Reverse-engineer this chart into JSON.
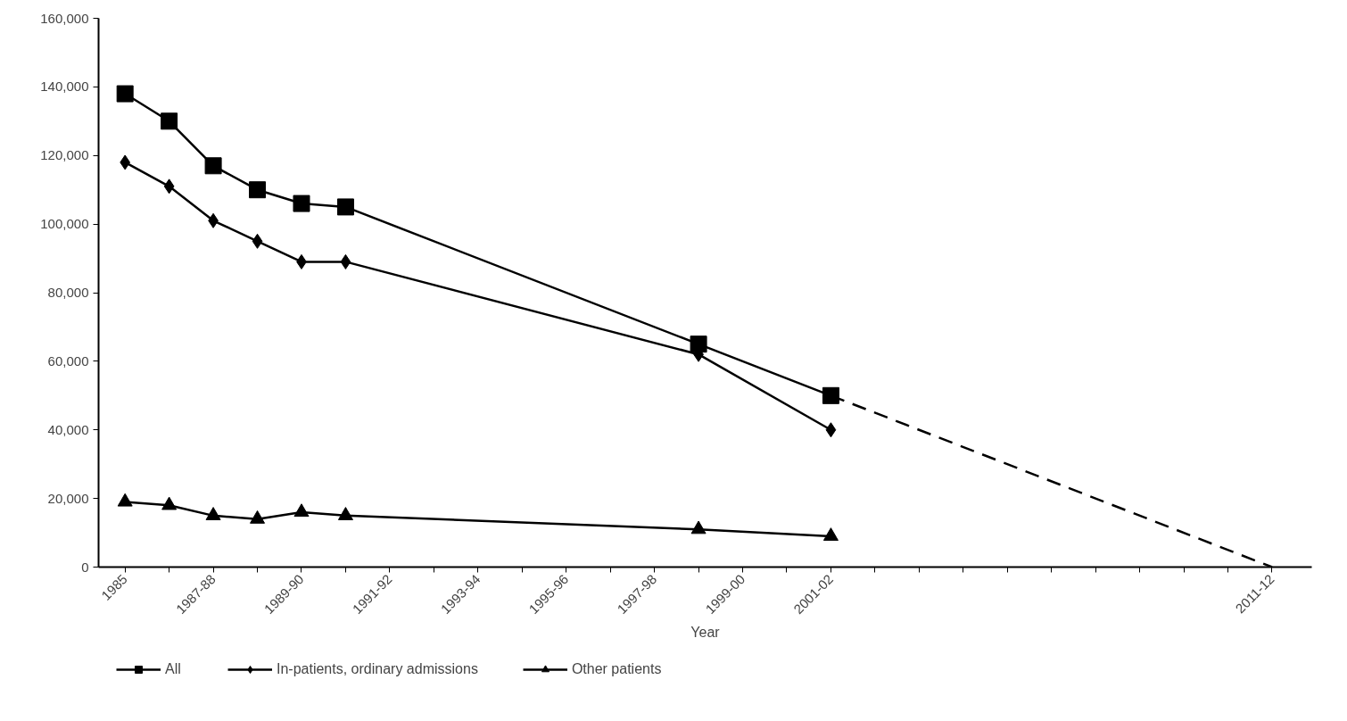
{
  "chart_data": {
    "type": "line",
    "xlabel": "Year",
    "categories": [
      "1985",
      null,
      "1987-88",
      null,
      "1989-90",
      null,
      "1991-92",
      null,
      "1993-94",
      null,
      "1995-96",
      null,
      "1997-98",
      null,
      "1999-00",
      null,
      "2001-02",
      null,
      null,
      null,
      null,
      null,
      null,
      null,
      null,
      null,
      "2011-12"
    ],
    "ylim": [
      0,
      160000
    ],
    "yticks": [
      0,
      {
        "value": 20000,
        "label": "20,000"
      },
      {
        "value": 40000,
        "label": "40,000"
      },
      {
        "value": 60000,
        "label": "60,000"
      },
      {
        "value": 80000,
        "label": "80,000"
      },
      {
        "value": 100000,
        "label": "100,000"
      },
      {
        "value": 120000,
        "label": "120,000"
      },
      {
        "value": 140000,
        "label": "140,000"
      },
      {
        "value": 160000,
        "label": "160,000"
      }
    ],
    "grid": false,
    "legend": "bottom",
    "series": [
      {
        "name": "All",
        "color": "#000000",
        "marker": "square",
        "values": [
          138000,
          130000,
          117000,
          110000,
          106000,
          105000,
          null,
          null,
          null,
          null,
          null,
          null,
          null,
          65000,
          null,
          null,
          50000,
          null,
          null,
          null,
          null,
          null,
          null,
          null,
          null,
          null,
          null
        ]
      },
      {
        "name": "In-patients, ordinary admissions",
        "color": "#000000",
        "marker": "diamond",
        "values": [
          118000,
          111000,
          101000,
          95000,
          89000,
          89000,
          null,
          null,
          null,
          null,
          null,
          null,
          null,
          62000,
          null,
          null,
          40000,
          null,
          null,
          null,
          null,
          null,
          null,
          null,
          null,
          null,
          null
        ]
      },
      {
        "name": "Other patients",
        "color": "#000000",
        "marker": "triangle",
        "values": [
          19000,
          18000,
          15000,
          14000,
          16000,
          15000,
          null,
          null,
          null,
          null,
          null,
          null,
          null,
          11000,
          null,
          null,
          9000,
          null,
          null,
          null,
          null,
          null,
          null,
          null,
          null,
          null,
          null
        ]
      },
      {
        "color": "#000000",
        "line_style": "dashed",
        "values": [
          null,
          null,
          null,
          null,
          null,
          null,
          null,
          null,
          null,
          null,
          null,
          null,
          null,
          null,
          null,
          null,
          50000,
          null,
          null,
          null,
          null,
          null,
          null,
          null,
          null,
          null,
          0
        ]
      }
    ]
  }
}
